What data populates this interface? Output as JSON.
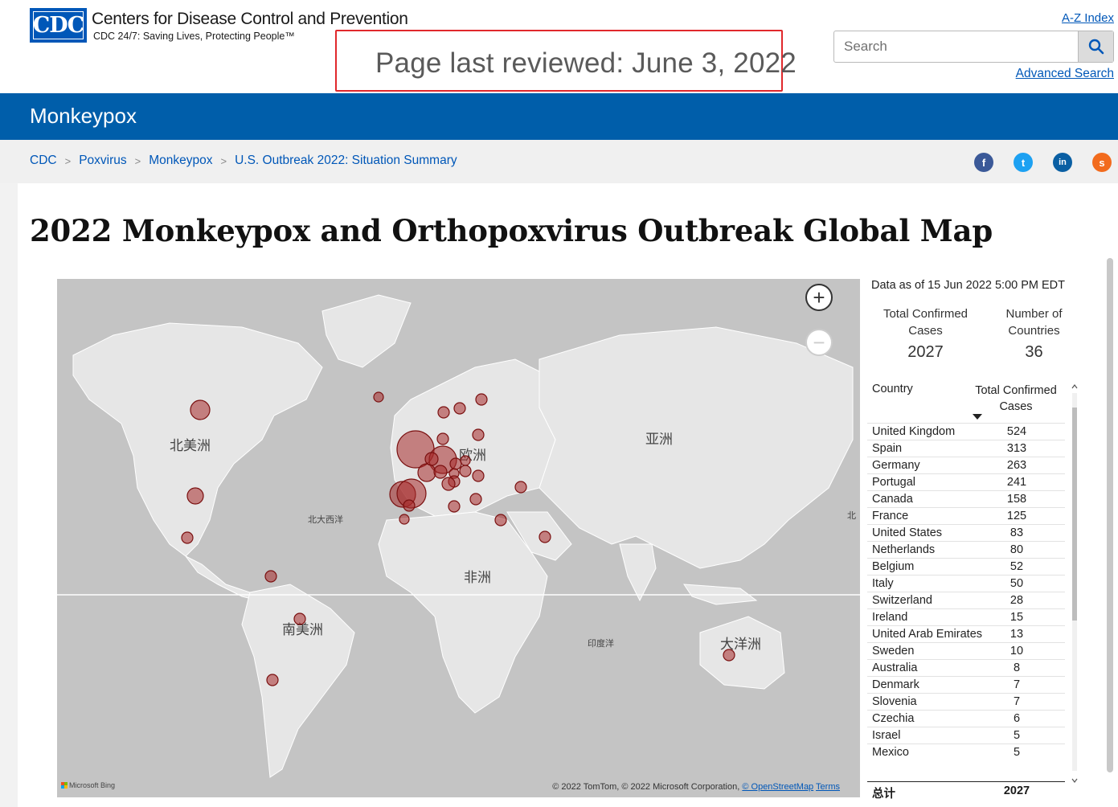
{
  "header": {
    "logo_text": "CDC",
    "org_name": "Centers for Disease Control and Prevention",
    "tagline": "CDC 24/7: Saving Lives, Protecting People™",
    "last_reviewed": "Page last reviewed: June 3, 2022",
    "az_index": "A-Z Index",
    "search_placeholder": "Search",
    "advanced_search": "Advanced Search"
  },
  "topic": {
    "title": "Monkeypox"
  },
  "breadcrumb": [
    "CDC",
    "Poxvirus",
    "Monkeypox",
    "U.S. Outbreak 2022: Situation Summary"
  ],
  "breadcrumb_sep": ">",
  "social": {
    "facebook": "f",
    "twitter": "t",
    "linkedin": "in",
    "syndicate": "s"
  },
  "main": {
    "title": "2022 Monkeypox and Orthopoxvirus Outbreak Global Map"
  },
  "map": {
    "labels": {
      "north_america": "北美洲",
      "europe": "欧洲",
      "asia": "亚洲",
      "africa": "非洲",
      "south_america": "南美洲",
      "oceania": "大洋洲",
      "north_atlantic": "北大西洋",
      "indian_ocean": "印度洋",
      "north_pacific_cut": "北"
    },
    "zoom_in": "+",
    "zoom_out": "−",
    "attribution": "© 2022 TomTom, © 2022 Microsoft Corporation,",
    "osm_link": "© OpenStreetMap",
    "terms_link": "Terms",
    "bing": "Microsoft Bing",
    "bubble_color": "#a52a2a"
  },
  "side": {
    "as_of": "Data as of 15 Jun 2022 5:00 PM EDT",
    "kpi_cases_label": "Total Confirmed Cases",
    "kpi_cases_value": "2027",
    "kpi_countries_label": "Number of Countries",
    "kpi_countries_value": "36",
    "col_country": "Country",
    "col_cases": "Total Confirmed Cases",
    "rows": [
      {
        "country": "United Kingdom",
        "cases": "524"
      },
      {
        "country": "Spain",
        "cases": "313"
      },
      {
        "country": "Germany",
        "cases": "263"
      },
      {
        "country": "Portugal",
        "cases": "241"
      },
      {
        "country": "Canada",
        "cases": "158"
      },
      {
        "country": "France",
        "cases": "125"
      },
      {
        "country": "United States",
        "cases": "83"
      },
      {
        "country": "Netherlands",
        "cases": "80"
      },
      {
        "country": "Belgium",
        "cases": "52"
      },
      {
        "country": "Italy",
        "cases": "50"
      },
      {
        "country": "Switzerland",
        "cases": "28"
      },
      {
        "country": "Ireland",
        "cases": "15"
      },
      {
        "country": "United Arab Emirates",
        "cases": "13"
      },
      {
        "country": "Sweden",
        "cases": "10"
      },
      {
        "country": "Australia",
        "cases": "8"
      },
      {
        "country": "Denmark",
        "cases": "7"
      },
      {
        "country": "Slovenia",
        "cases": "7"
      },
      {
        "country": "Czechia",
        "cases": "6"
      },
      {
        "country": "Israel",
        "cases": "5"
      },
      {
        "country": "Mexico",
        "cases": "5"
      }
    ],
    "total_label": "总计",
    "total_value": "2027"
  }
}
